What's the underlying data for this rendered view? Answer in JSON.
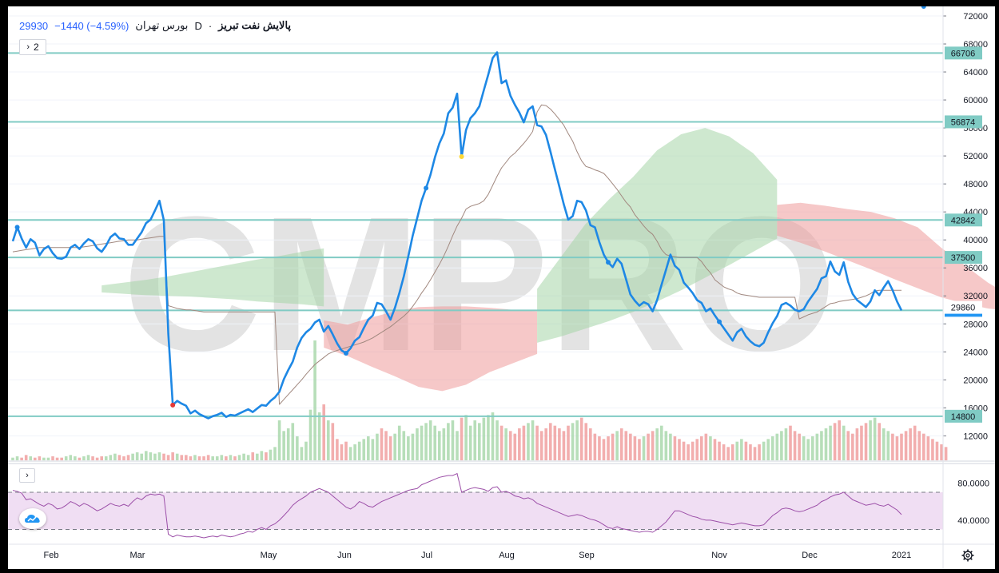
{
  "header": {
    "symbol": "پالایش نفت تبریز",
    "separator": "·",
    "interval": "D",
    "exchange": "بورس تهران",
    "last": "29930",
    "change": "−1440 (−4.59%)",
    "indicator_toggle_icon": "chevron-right-icon",
    "indicator_count": "2"
  },
  "colors": {
    "price_line": "#1e88e5",
    "hline": "#80cbc4",
    "ma_line": "#a1887f",
    "cloud_green": "#a5d6a7",
    "cloud_red": "#ef9a9a",
    "vol_up": "#a5d6a7",
    "vol_down": "#ef9a9a",
    "rsi_line": "#9c4fa8",
    "rsi_band": "#e1bee7",
    "watermark": "#e3e3e3"
  },
  "watermark": "CMPRO",
  "rsi_pane": {
    "toggle_icon": "chevron-right-icon",
    "logo_icon": "tradingview-cloud-icon",
    "ticks": [
      "80.0000",
      "40.0000"
    ]
  },
  "settings_icon": "gear-icon",
  "chart_data": {
    "type": "line",
    "x_ticks": [
      "Feb",
      "Mar",
      "May",
      "Jun",
      "Jul",
      "Aug",
      "Sep",
      "Nov",
      "Dec",
      "2021"
    ],
    "y_ticks": [
      "72000",
      "68000",
      "64000",
      "60000",
      "56000",
      "52000",
      "48000",
      "44000",
      "40000",
      "36000",
      "32000",
      "28000",
      "24000",
      "20000",
      "16000",
      "12000"
    ],
    "ylim": [
      8500,
      72000
    ],
    "horizontal_levels": [
      66706,
      56874,
      42842,
      37500,
      29930,
      14800
    ],
    "level_labels": [
      "66706",
      "56874",
      "42842",
      "37500",
      "29930",
      "14800"
    ],
    "extra_labels": [
      {
        "text": "29860",
        "value": 29860
      }
    ],
    "series": [
      {
        "values": [
          39800,
          41800,
          40200,
          38900,
          40100,
          39600,
          37800,
          38700,
          39100,
          38100,
          37400,
          37300,
          37600,
          38900,
          39300,
          38700,
          39500,
          40100,
          39800,
          38800,
          38300,
          39200,
          40400,
          40900,
          40200,
          40100,
          39300,
          39300,
          40200,
          41100,
          42400,
          42900,
          44200,
          45600,
          42800,
          26600,
          16400,
          17000,
          16600,
          16300,
          15200,
          15600,
          15100,
          14800,
          14500,
          14800,
          15000,
          15300,
          14700,
          15000,
          14900,
          15200,
          15500,
          15800,
          15400,
          15900,
          16400,
          16300,
          17000,
          17500,
          18300,
          20100,
          21400,
          22600,
          24600,
          26000,
          26800,
          27300,
          28200,
          28600,
          26900,
          27700,
          26500,
          25200,
          24200,
          23800,
          24500,
          25600,
          26100,
          27400,
          28600,
          29200,
          31000,
          30800,
          29800,
          28600,
          30300,
          32400,
          34800,
          37600,
          40600,
          43100,
          45600,
          47400,
          49300,
          51800,
          53800,
          55200,
          58100,
          58900,
          60900,
          51900,
          55700,
          57400,
          58100,
          59100,
          61400,
          63600,
          66000,
          66800,
          62400,
          62800,
          60600,
          59300,
          58200,
          56800,
          58600,
          59100,
          56400,
          56200,
          55000,
          52600,
          50100,
          47600,
          45100,
          42900,
          43400,
          45600,
          45400,
          44200,
          42100,
          41800,
          39700,
          37900,
          36800,
          36100,
          37300,
          36600,
          34400,
          32200,
          31300,
          30600,
          31100,
          30800,
          29800,
          31400,
          33600,
          35700,
          37900,
          36300,
          35700,
          33900,
          33200,
          32400,
          31400,
          31000,
          29800,
          30200,
          29200,
          28300,
          27400,
          26500,
          25600,
          26800,
          27300,
          26200,
          25500,
          25000,
          24800,
          25300,
          26800,
          28100,
          29100,
          30700,
          31000,
          30600,
          30000,
          29800,
          30100,
          31200,
          32100,
          33000,
          34500,
          34800,
          36900,
          35500,
          35000,
          36800,
          34000,
          32300,
          31400,
          30900,
          30400,
          31200,
          32800,
          32100,
          33200,
          34100,
          32800,
          31200,
          29930
        ]
      },
      {
        "values": [
          38300,
          38400,
          38500,
          38600,
          38700,
          38800,
          38900,
          38900,
          38900,
          38900,
          38900,
          38900,
          38900,
          38900,
          38900,
          38900,
          39000,
          39100,
          39200,
          39300,
          39400,
          39500,
          39600,
          39700,
          39800,
          39900,
          40000,
          40000,
          40000,
          40100,
          40200,
          40300,
          40400,
          40500,
          40500,
          30600,
          30400,
          30200,
          30100,
          30000,
          30000,
          29900,
          29800,
          29700,
          29700,
          29700,
          29700,
          29700,
          29700,
          29700,
          29700,
          29700,
          29700,
          29700,
          29700,
          29700,
          29700,
          29700,
          29700,
          29700,
          16500,
          17200,
          17900,
          18600,
          19300,
          20000,
          20800,
          21500,
          22200,
          22700,
          23200,
          23700,
          24000,
          24200,
          24400,
          24600,
          24800,
          25000,
          25200,
          25400,
          25700,
          26000,
          26400,
          26800,
          27200,
          27600,
          28100,
          28600,
          29100,
          29700,
          30500,
          31400,
          32400,
          33300,
          34300,
          35400,
          36500,
          37700,
          39100,
          40600,
          42000,
          43100,
          44400,
          44800,
          45000,
          45200,
          45600,
          46500,
          47800,
          49100,
          50300,
          51100,
          51900,
          52400,
          53100,
          53800,
          54600,
          55500,
          58300,
          59300,
          59200,
          58700,
          58000,
          57200,
          56400,
          55200,
          54100,
          52600,
          51300,
          50500,
          50300,
          50000,
          49800,
          49500,
          48800,
          48000,
          47200,
          46300,
          45400,
          44700,
          43600,
          42800,
          42000,
          41300,
          40800,
          39800,
          38600,
          37900,
          37700,
          37600,
          37500,
          37500,
          37500,
          37500,
          37500,
          36900,
          36000,
          35300,
          34300,
          33800,
          33300,
          33000,
          32800,
          32400,
          32200,
          32100,
          32000,
          31900,
          31800,
          31800,
          31800,
          31800,
          31800,
          31800,
          31800,
          31800,
          31800,
          28700,
          29000,
          29300,
          29500,
          29700,
          30100,
          30500,
          30900,
          31000,
          31200,
          31300,
          31400,
          31500,
          31600,
          31800,
          32000,
          32300,
          32700,
          32800,
          32800,
          32800,
          32800,
          32800,
          32800
        ]
      }
    ],
    "ichimoku_cloud": [
      {
        "color": "green",
        "from_index": 20,
        "to_index": 70,
        "top": [
          33500,
          33900,
          34300,
          34800,
          35400,
          36000,
          36600,
          37200,
          37700,
          38300,
          38800
        ],
        "bottom": [
          32500,
          32300,
          32100,
          32000,
          31900,
          31700,
          31500,
          31200,
          31000,
          30800,
          30500
        ]
      },
      {
        "color": "red",
        "from_index": 70,
        "to_index": 118,
        "top": [
          28500,
          27900,
          28900,
          29800,
          30400,
          30500,
          30500,
          30300,
          30000,
          29800
        ],
        "bottom": [
          24600,
          23400,
          21900,
          20500,
          19000,
          18400,
          19300,
          21100,
          22400,
          23700
        ]
      },
      {
        "color": "green",
        "from_index": 118,
        "to_index": 172,
        "top": [
          33000,
          37600,
          42200,
          45800,
          49000,
          52800,
          55100,
          56000,
          54800,
          52400,
          48600
        ],
        "bottom": [
          25300,
          26200,
          27300,
          28400,
          29700,
          31200,
          32800,
          34600,
          36400,
          38300,
          40200
        ]
      },
      {
        "color": "red",
        "from_index": 172,
        "to_index": 230,
        "top": [
          45000,
          45300,
          44900,
          44400,
          44000,
          43100,
          41800,
          38900,
          36400,
          33900,
          31900,
          30800
        ],
        "bottom": [
          40600,
          39600,
          38400,
          37100,
          35800,
          34400,
          33100,
          31800,
          30900,
          30200,
          29800,
          29600
        ]
      }
    ],
    "volume": [
      2,
      3,
      2,
      4,
      3,
      2,
      3,
      2,
      2,
      3,
      2,
      2,
      3,
      4,
      3,
      2,
      3,
      4,
      3,
      2,
      3,
      3,
      4,
      5,
      4,
      3,
      4,
      5,
      6,
      5,
      7,
      6,
      5,
      6,
      5,
      4,
      6,
      5,
      4,
      4,
      3,
      4,
      3,
      3,
      4,
      3,
      3,
      4,
      3,
      4,
      3,
      4,
      5,
      4,
      6,
      5,
      7,
      6,
      8,
      10,
      30,
      22,
      24,
      28,
      18,
      10,
      14,
      38,
      90,
      36,
      42,
      30,
      28,
      16,
      12,
      14,
      10,
      12,
      14,
      16,
      18,
      16,
      20,
      24,
      22,
      18,
      20,
      26,
      22,
      18,
      20,
      24,
      26,
      28,
      30,
      26,
      22,
      24,
      28,
      30,
      22,
      32,
      34,
      26,
      30,
      28,
      32,
      34,
      36,
      30,
      26,
      24,
      22,
      20,
      24,
      26,
      28,
      30,
      26,
      22,
      24,
      28,
      26,
      24,
      22,
      26,
      28,
      30,
      32,
      28,
      24,
      20,
      18,
      16,
      18,
      20,
      22,
      24,
      22,
      20,
      18,
      16,
      18,
      20,
      22,
      24,
      26,
      22,
      20,
      18,
      16,
      14,
      12,
      14,
      16,
      18,
      20,
      18,
      16,
      14,
      12,
      10,
      12,
      14,
      16,
      14,
      12,
      10,
      12,
      14,
      16,
      18,
      20,
      22,
      24,
      26,
      22,
      20,
      18,
      16,
      18,
      20,
      22,
      24,
      26,
      28,
      30,
      26,
      22,
      20,
      24,
      26,
      28,
      30,
      32,
      28,
      24,
      22,
      20,
      18,
      20,
      22,
      24,
      26,
      22,
      20,
      18,
      16,
      14,
      12,
      10
    ],
    "rsi": [
      72,
      71,
      69,
      62,
      63,
      60,
      57,
      55,
      58,
      56,
      52,
      53,
      56,
      60,
      58,
      55,
      58,
      56,
      53,
      50,
      52,
      55,
      58,
      56,
      55,
      57,
      55,
      60,
      64,
      62,
      66,
      68,
      67,
      68,
      66,
      25,
      22,
      24,
      23,
      22,
      22,
      23,
      22,
      21,
      22,
      23,
      22,
      24,
      23,
      22,
      23,
      25,
      26,
      28,
      27,
      30,
      32,
      30,
      34,
      36,
      40,
      45,
      50,
      56,
      60,
      63,
      66,
      70,
      72,
      74,
      72,
      70,
      66,
      62,
      58,
      54,
      52,
      55,
      60,
      58,
      55,
      54,
      57,
      60,
      62,
      64,
      66,
      68,
      70,
      72,
      73,
      74,
      78,
      80,
      82,
      84,
      86,
      87,
      88,
      88,
      90,
      70,
      72,
      74,
      75,
      74,
      73,
      71,
      75,
      76,
      70,
      71,
      69,
      66,
      65,
      63,
      64,
      62,
      58,
      56,
      54,
      52,
      50,
      48,
      46,
      44,
      45,
      46,
      45,
      43,
      41,
      40,
      38,
      35,
      32,
      31,
      33,
      31,
      30,
      29,
      28,
      27,
      28,
      28,
      27,
      30,
      34,
      38,
      44,
      50,
      50,
      48,
      46,
      44,
      43,
      41,
      40,
      40,
      39,
      38,
      37,
      36,
      35,
      36,
      37,
      36,
      35,
      34,
      34,
      35,
      40,
      45,
      48,
      52,
      53,
      52,
      50,
      49,
      50,
      52,
      54,
      56,
      60,
      62,
      65,
      67,
      68,
      70,
      66,
      62,
      60,
      58,
      56,
      57,
      58,
      56,
      55,
      57,
      54,
      51,
      46
    ],
    "rsi_levels": [
      70,
      30
    ],
    "rsi_ylim": [
      15,
      100
    ]
  }
}
